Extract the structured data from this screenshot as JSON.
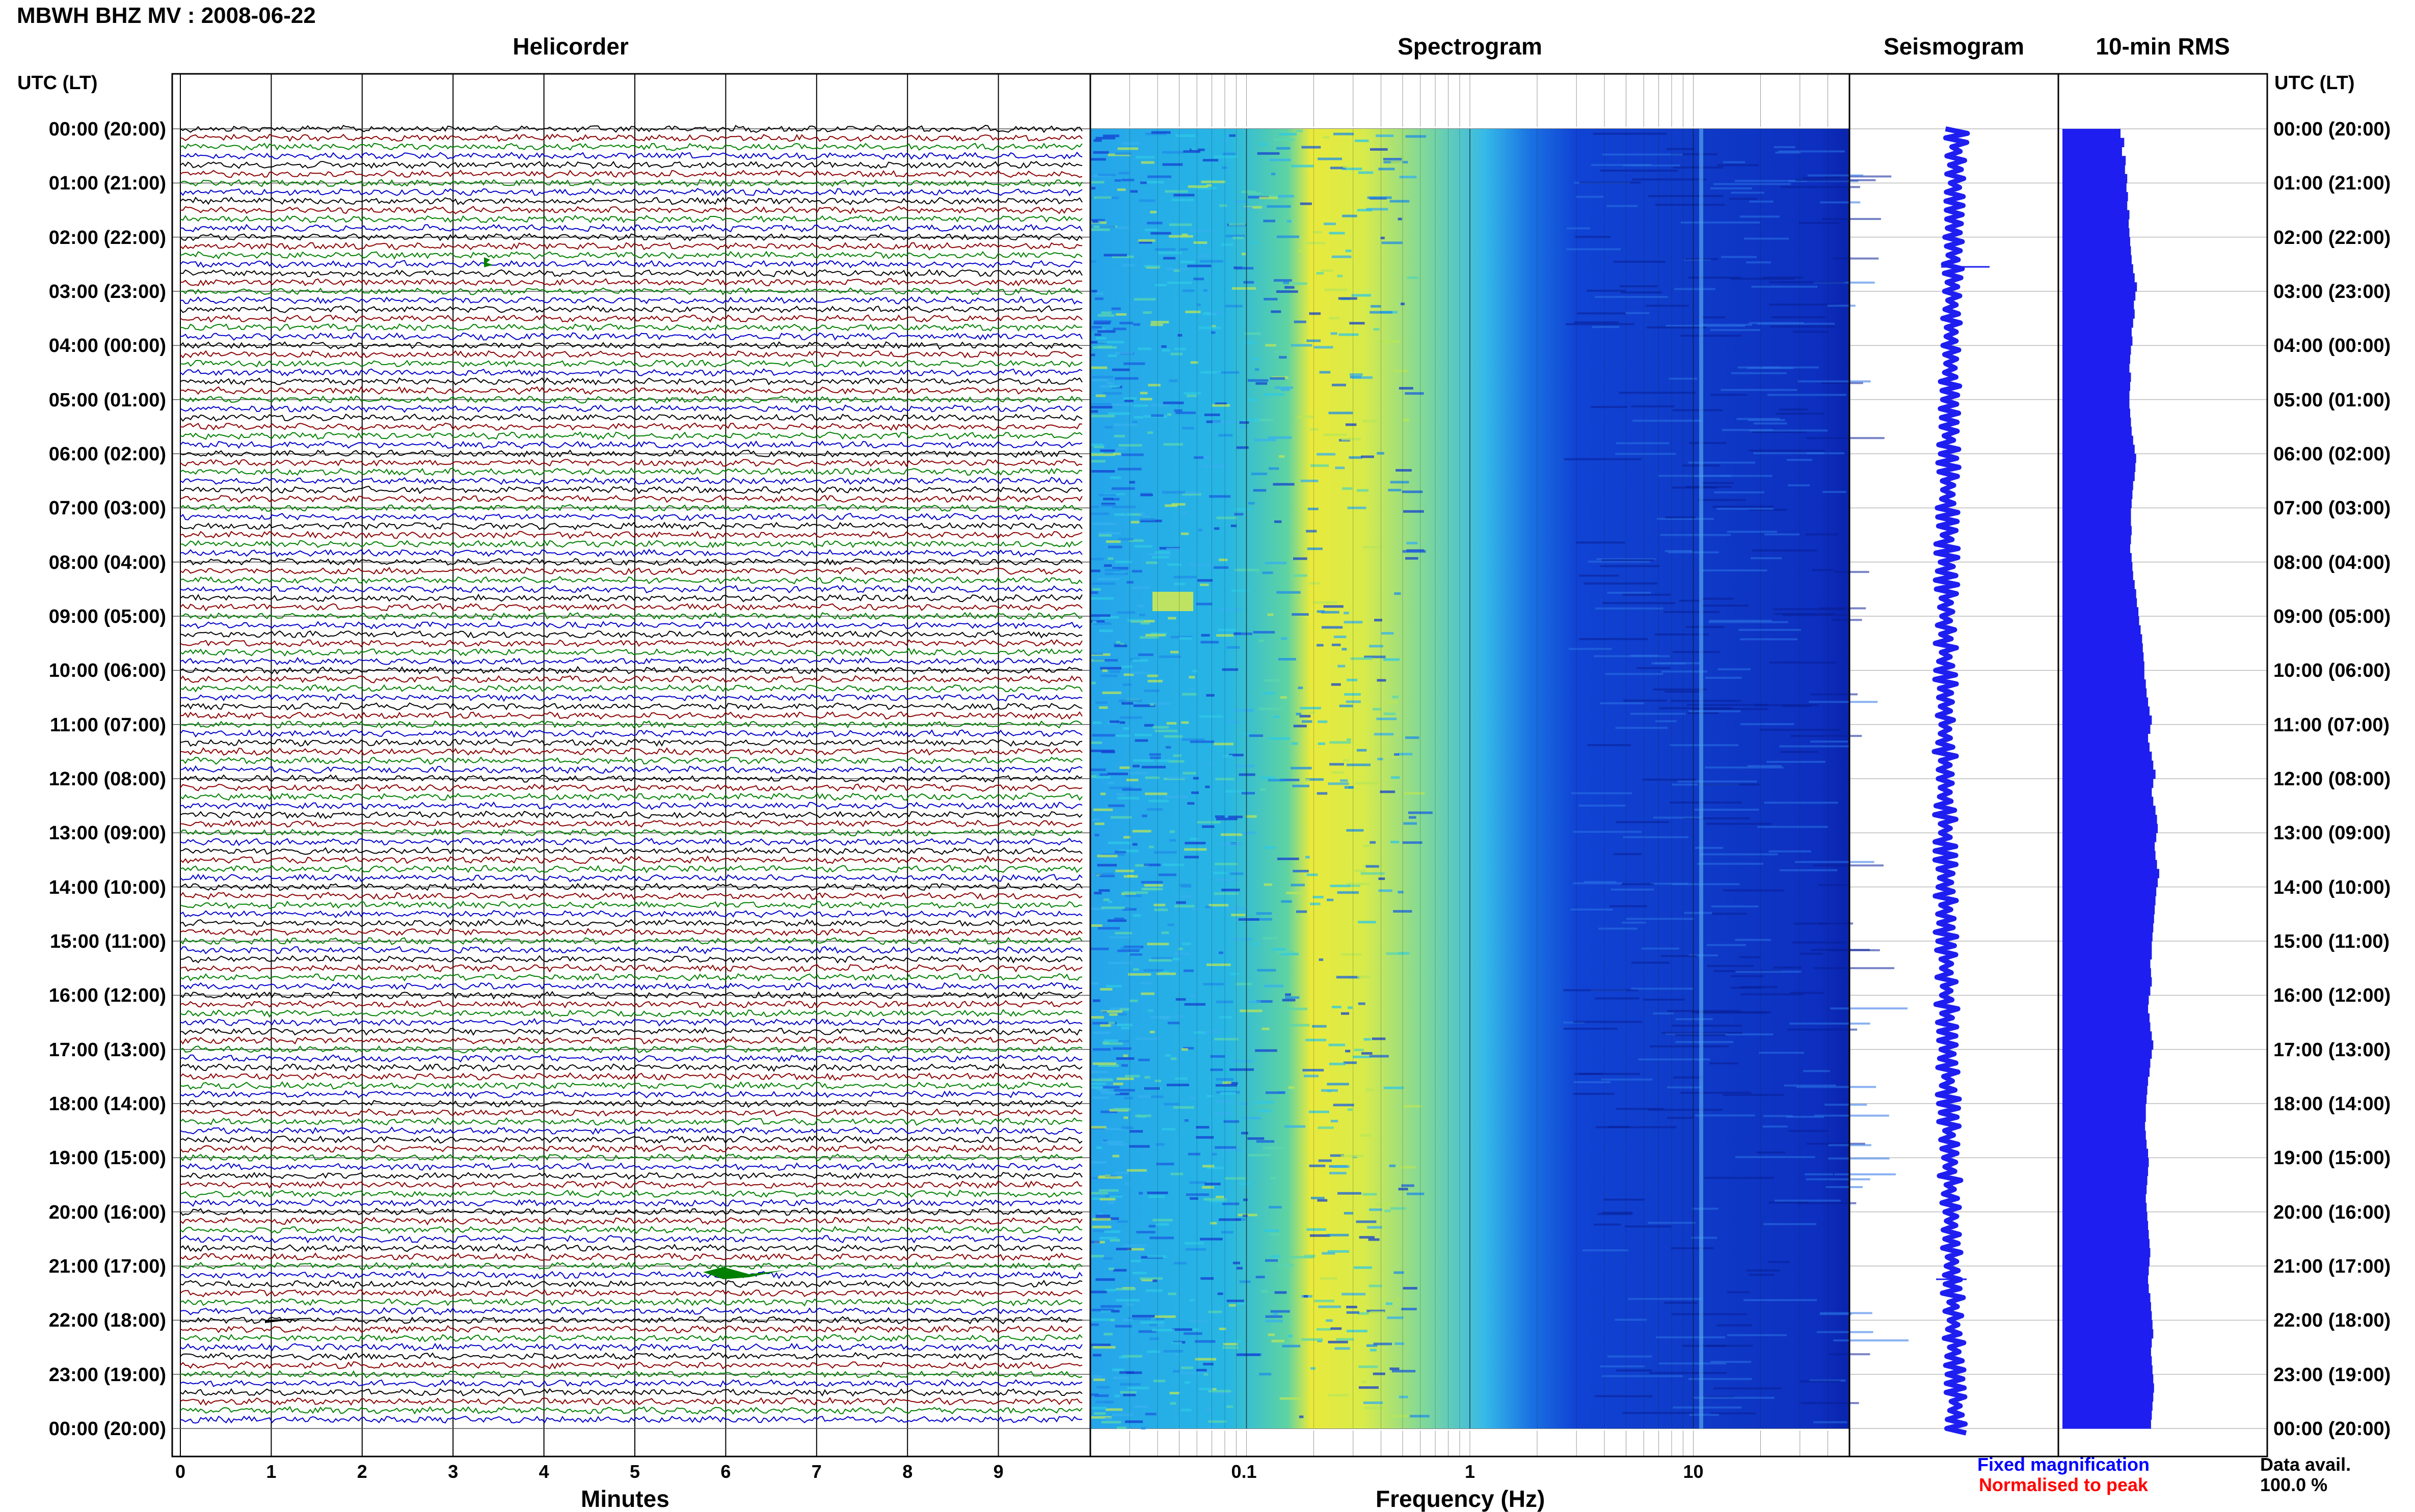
{
  "header": {
    "title": "MBWH BHZ MV : 2008-06-22"
  },
  "panels": {
    "helicorder": "Helicorder",
    "spectrogram": "Spectrogram",
    "seismogram": "Seismogram",
    "rms": "10-min RMS"
  },
  "left_axis_header": "UTC (LT)",
  "right_axis_header": "UTC (LT)",
  "footer": {
    "fixed": "Fixed magnification",
    "normalised": "Normalised to peak",
    "avail_label": "Data avail.",
    "avail_value": "100.0 %"
  },
  "colors": {
    "trace_cycle": [
      "#000000",
      "#8b0000",
      "#008000",
      "#0000cd"
    ],
    "seismogram": "#1e1ef0",
    "rms": "#1e1ef0",
    "fixed_text": "#0000ff",
    "normalised_text": "#ff0000"
  },
  "chart_data": [
    {
      "type": "line",
      "panel": "Helicorder",
      "xlabel": "Minutes",
      "x_ticks": [
        "0",
        "1",
        "2",
        "3",
        "4",
        "5",
        "6",
        "7",
        "8",
        "9"
      ],
      "xlim": [
        0,
        10
      ],
      "y_ticks": [
        "00:00 (20:00)",
        "01:00 (21:00)",
        "02:00 (22:00)",
        "03:00 (23:00)",
        "04:00 (00:00)",
        "05:00 (01:00)",
        "06:00 (02:00)",
        "07:00 (03:00)",
        "08:00 (04:00)",
        "09:00 (05:00)",
        "10:00 (06:00)",
        "11:00 (07:00)",
        "12:00 (08:00)",
        "13:00 (09:00)",
        "14:00 (10:00)",
        "15:00 (11:00)",
        "16:00 (12:00)",
        "17:00 (13:00)",
        "18:00 (14:00)",
        "19:00 (15:00)",
        "20:00 (16:00)",
        "21:00 (17:00)",
        "22:00 (18:00)",
        "23:00 (19:00)",
        "00:00 (20:00)"
      ],
      "traces_per_hour": 6,
      "minutes_per_trace": 10
    },
    {
      "type": "heatmap",
      "panel": "Spectrogram",
      "xlabel": "Frequency (Hz)",
      "x_scale": "log",
      "x_ticks": [
        "0.1",
        "1",
        "10"
      ],
      "xlim": [
        0.02,
        50
      ],
      "peak_band_hz": [
        0.2,
        0.5
      ]
    },
    {
      "type": "line",
      "panel": "Seismogram",
      "note": "one sample per 10-min row, fixed magnification"
    },
    {
      "type": "bar",
      "panel": "10-min RMS",
      "rows": 144,
      "relative_levels": [
        0.78,
        0.83,
        0.8,
        0.85,
        0.84,
        0.87,
        0.86,
        0.88,
        0.87,
        0.9,
        0.89,
        0.9,
        0.91,
        0.92,
        0.93,
        0.95,
        0.97,
        1.0,
        0.98,
        0.96,
        0.97,
        0.95,
        0.93,
        0.94,
        0.92,
        0.91,
        0.9,
        0.92,
        0.91,
        0.9,
        0.9,
        0.91,
        0.92,
        0.93,
        0.95,
        0.97,
        0.99,
        0.98,
        0.97,
        0.95,
        0.94,
        0.93,
        0.92,
        0.92,
        0.93,
        0.92,
        0.91,
        0.93,
        0.94,
        0.95,
        0.97,
        0.99,
        1.0,
        1.02,
        1.03,
        1.05,
        1.07,
        1.08,
        1.09,
        1.1,
        1.1,
        1.12,
        1.13,
        1.15,
        1.17,
        1.2,
        1.18,
        1.15,
        1.17,
        1.2,
        1.22,
        1.25,
        1.22,
        1.2,
        1.22,
        1.25,
        1.27,
        1.28,
        1.26,
        1.24,
        1.25,
        1.27,
        1.3,
        1.28,
        1.26,
        1.25,
        1.24,
        1.23,
        1.22,
        1.21,
        1.2,
        1.2,
        1.18,
        1.19,
        1.2,
        1.18,
        1.16,
        1.15,
        1.17,
        1.18,
        1.2,
        1.22,
        1.2,
        1.18,
        1.17,
        1.15,
        1.14,
        1.13,
        1.12,
        1.12,
        1.11,
        1.12,
        1.13,
        1.15,
        1.16,
        1.15,
        1.14,
        1.13,
        1.12,
        1.13,
        1.14,
        1.15,
        1.16,
        1.17,
        1.18,
        1.17,
        1.16,
        1.15,
        1.16,
        1.18,
        1.19,
        1.2,
        1.21,
        1.22,
        1.2,
        1.19,
        1.2,
        1.21,
        1.22,
        1.23,
        1.22,
        1.21,
        1.2,
        1.19
      ]
    }
  ]
}
